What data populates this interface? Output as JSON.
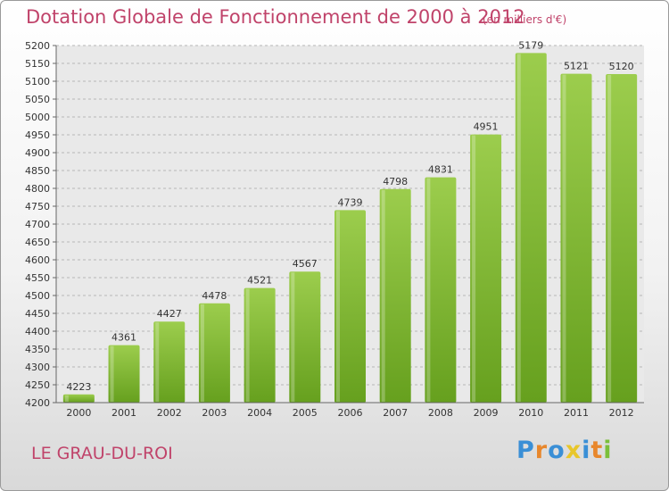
{
  "header": {
    "title": "Dotation Globale de Fonctionnement de 2000 à 2012",
    "unit": "(en milliers d'€)"
  },
  "footer": {
    "commune": "LE GRAU-DU-ROI",
    "logo_text": "Proxiti",
    "logo_letter_colors": [
      "#3a8fd6",
      "#e8872c",
      "#3a8fd6",
      "#e8c62a",
      "#3a8fd6",
      "#e8872c",
      "#7bbf3a"
    ]
  },
  "colors": {
    "title": "#c0436a",
    "bar_light": "#9ccd4d",
    "bar_dark": "#66a01e",
    "grid": "#b8b8b8",
    "plot_bg": "#e9e9e9"
  },
  "chart_data": {
    "type": "bar",
    "categories": [
      "2000",
      "2001",
      "2002",
      "2003",
      "2004",
      "2005",
      "2006",
      "2007",
      "2008",
      "2009",
      "2010",
      "2011",
      "2012"
    ],
    "values": [
      4223,
      4361,
      4427,
      4478,
      4521,
      4567,
      4739,
      4798,
      4831,
      4951,
      5179,
      5121,
      5120
    ],
    "title": "Dotation Globale de Fonctionnement de 2000 à 2012",
    "ylim": [
      4200,
      5200
    ],
    "ytick_step": 50,
    "grid": true
  }
}
